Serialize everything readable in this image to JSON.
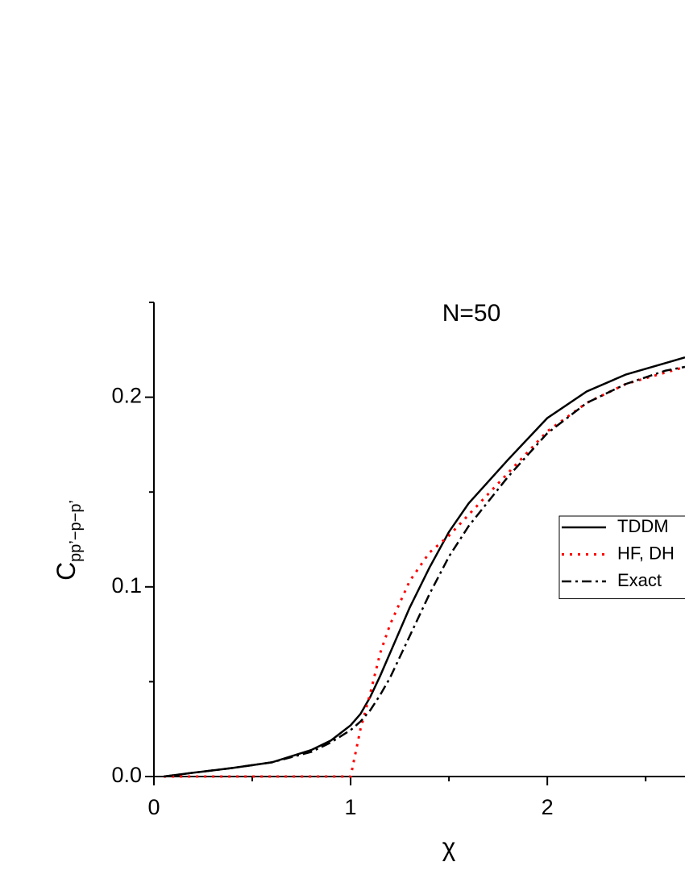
{
  "chart_data": {
    "type": "line",
    "title": "N=50",
    "xlabel": "χ",
    "ylabel": "C",
    "ylabel_sub": "pp’−p−p’",
    "x": [
      0.05,
      0.2,
      0.4,
      0.6,
      0.8,
      0.9,
      1.0,
      1.05,
      1.1,
      1.15,
      1.2,
      1.3,
      1.4,
      1.5,
      1.6,
      1.8,
      2.0,
      2.2,
      2.4,
      2.6,
      2.7
    ],
    "series": [
      {
        "name": "TDDM",
        "color": "#000000",
        "dash": "solid",
        "values": [
          0,
          0.002,
          0.0045,
          0.0075,
          0.014,
          0.019,
          0.027,
          0.033,
          0.042,
          0.053,
          0.065,
          0.089,
          0.11,
          0.129,
          0.144,
          0.167,
          0.189,
          0.203,
          0.212,
          0.218,
          0.221
        ]
      },
      {
        "name": "HF, DH",
        "color": "#ff0000",
        "dash": "dot",
        "values": [
          0,
          0,
          0,
          0,
          0,
          0,
          0,
          0.025,
          0.044,
          0.065,
          0.08,
          0.103,
          0.118,
          0.127,
          0.138,
          0.16,
          0.182,
          0.197,
          0.207,
          0.213,
          0.216
        ]
      },
      {
        "name": "Exact",
        "color": "#000000",
        "dash": "dashdot",
        "values": [
          0,
          0.002,
          0.0045,
          0.0075,
          0.013,
          0.018,
          0.0245,
          0.029,
          0.035,
          0.043,
          0.052,
          0.074,
          0.096,
          0.116,
          0.132,
          0.158,
          0.181,
          0.197,
          0.207,
          0.214,
          0.216
        ]
      }
    ],
    "xlim": [
      0,
      2.7
    ],
    "xticks": [
      0,
      1,
      2
    ],
    "xminorticks": [
      0.5,
      1.5,
      2.5
    ],
    "ylim": [
      0,
      0.25
    ],
    "yticks": [
      {
        "value": 0,
        "label": "0.0"
      },
      0.1,
      0.2
    ],
    "yminorticks": [
      0.05,
      0.15,
      0.25
    ],
    "grid": false,
    "legend": "center right"
  }
}
